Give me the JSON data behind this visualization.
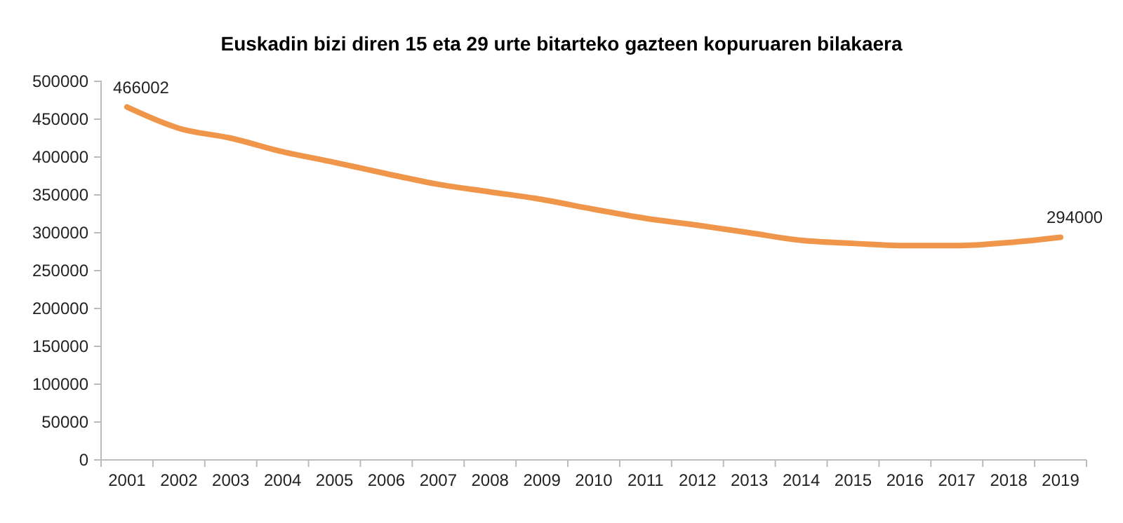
{
  "chart_data": {
    "type": "line",
    "title": "Euskadin bizi diren 15 eta 29 urte bitarteko gazteen kopuruaren bilakaera",
    "categories": [
      "2001",
      "2002",
      "2003",
      "2004",
      "2005",
      "2006",
      "2007",
      "2008",
      "2009",
      "2010",
      "2011",
      "2012",
      "2013",
      "2014",
      "2015",
      "2016",
      "2017",
      "2018",
      "2019"
    ],
    "series": [
      {
        "color": "#f0964a",
        "values": [
          466002,
          438000,
          425000,
          407000,
          393000,
          378000,
          364000,
          354000,
          344000,
          331000,
          319000,
          310000,
          300000,
          290000,
          286000,
          283000,
          283000,
          287000,
          294000
        ],
        "value_labels": [
          "466002",
          null,
          null,
          null,
          null,
          null,
          null,
          null,
          null,
          null,
          null,
          null,
          null,
          null,
          null,
          null,
          null,
          null,
          "294000"
        ]
      }
    ],
    "ylim": [
      0,
      500000
    ],
    "yticks": [
      0,
      50000,
      100000,
      150000,
      200000,
      250000,
      300000,
      350000,
      400000,
      450000,
      500000
    ],
    "grid": false,
    "marker": "none",
    "line_style": "solid"
  }
}
